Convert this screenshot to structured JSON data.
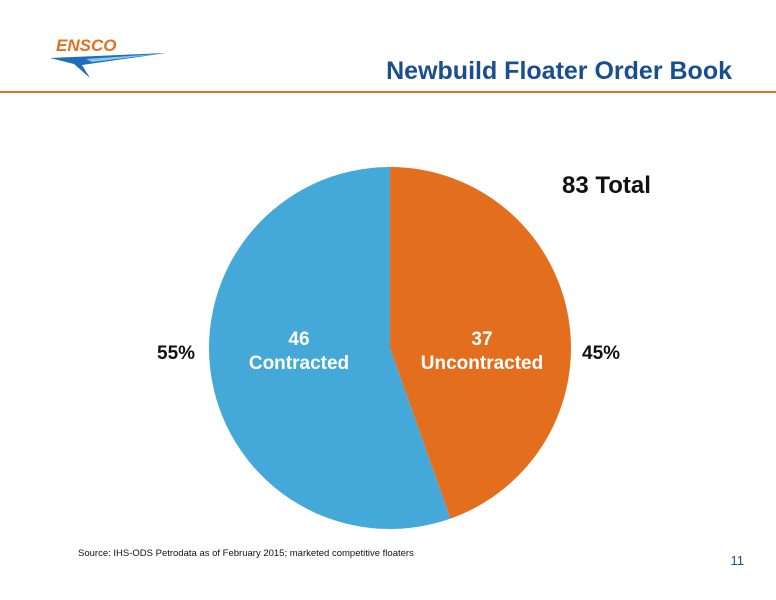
{
  "header": {
    "logo_text": "ENSCO",
    "title": "Newbuild Floater Order Book"
  },
  "colors": {
    "accent": "#e36f1e",
    "title": "#1a4f8f",
    "contracted": "#44a8d8",
    "uncontracted": "#e36f1e"
  },
  "chart_data": {
    "type": "pie",
    "total_label": "83 Total",
    "slices": [
      {
        "count": "37",
        "label": "Uncontracted",
        "percent_label": "45%",
        "value": 37,
        "color": "#e36f1e"
      },
      {
        "count": "46",
        "label": "Contracted",
        "percent_label": "55%",
        "value": 46,
        "color": "#44a8d8"
      }
    ]
  },
  "footer": {
    "source": "Source: IHS-ODS Petrodata as of February 2015; marketed competitive floaters",
    "page_number": "11"
  }
}
